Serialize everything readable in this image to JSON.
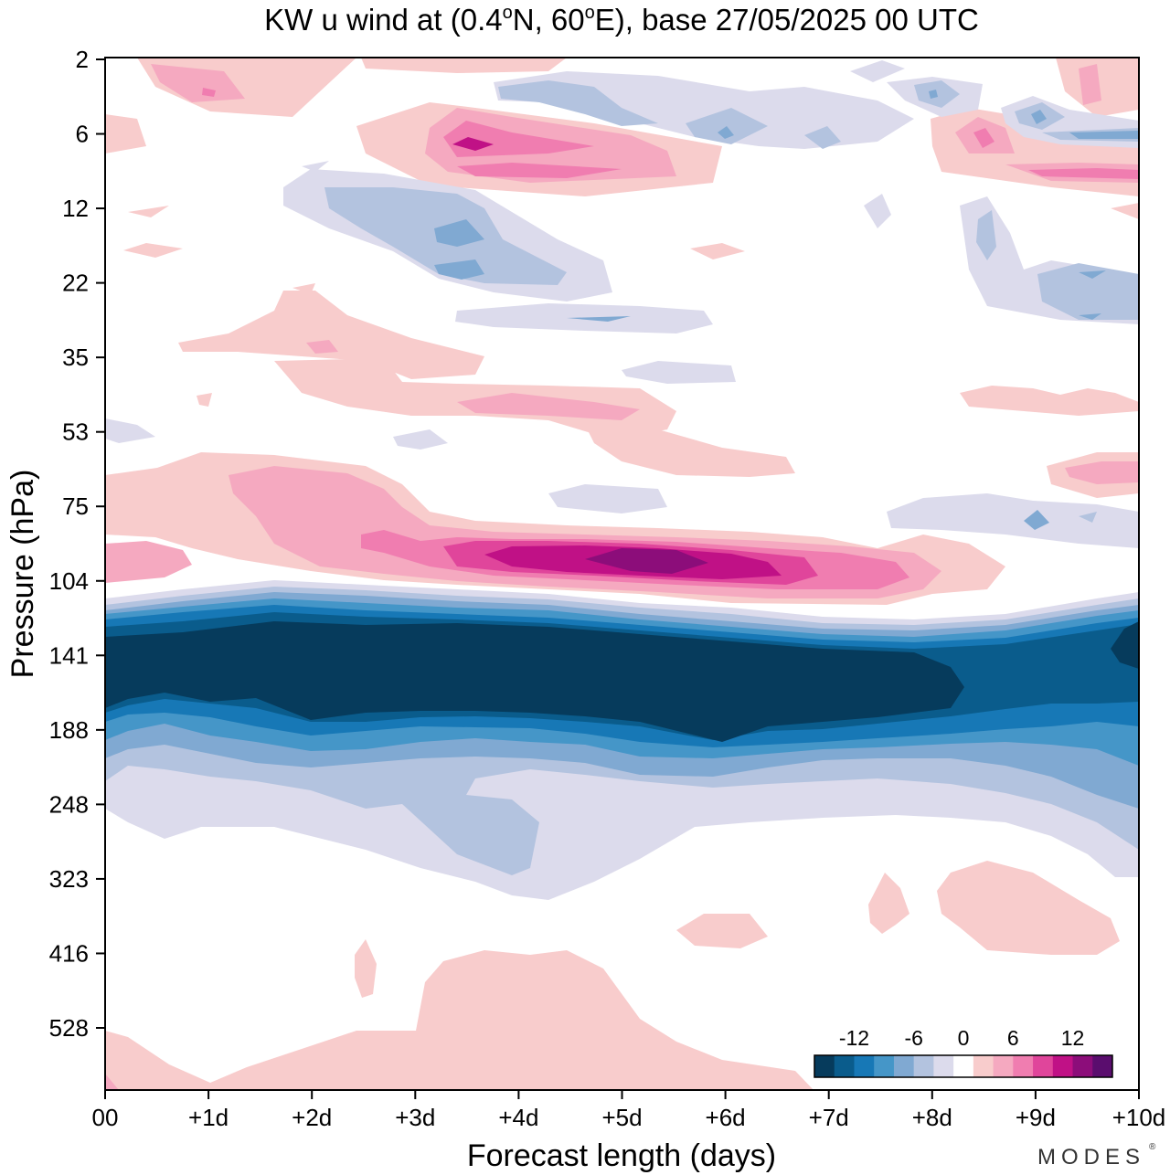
{
  "title": {
    "prefix": "KW u wind at (0.4",
    "deg1": "o",
    "mid": "N, 60",
    "deg2": "o",
    "suffix": "E),  base 27/05/2025  00 UTC"
  },
  "brand": "MODES",
  "brand_mark": "®",
  "chart_data": {
    "type": "heatmap",
    "variable": "KW u wind",
    "xlabel": "Forecast length (days)",
    "ylabel": "Pressure (hPa)",
    "x_ticks": [
      "00",
      "+1d",
      "+2d",
      "+3d",
      "+4d",
      "+5d",
      "+6d",
      "+7d",
      "+8d",
      "+9d",
      "+10d"
    ],
    "xlim": [
      0,
      10
    ],
    "y_ticks": [
      "2",
      "6",
      "12",
      "22",
      "35",
      "53",
      "75",
      "104",
      "141",
      "188",
      "248",
      "323",
      "416",
      "528"
    ],
    "y_levels": [
      2,
      6,
      12,
      22,
      35,
      53,
      75,
      104,
      141,
      188,
      248,
      323,
      416,
      528
    ],
    "y_reversed": true,
    "colorbar": {
      "tick_labels": [
        "-12",
        "-6",
        "0",
        "6",
        "12"
      ],
      "tick_values": [
        -12,
        -6,
        0,
        6,
        12
      ],
      "bounds": [
        -16,
        -14,
        -12,
        -10,
        -8,
        -6,
        -4,
        -2,
        2,
        4,
        6,
        8,
        10,
        12,
        14,
        16
      ],
      "colors": [
        "#063b5c",
        "#0a5c8c",
        "#1778b6",
        "#4596c8",
        "#80a9d2",
        "#b3c3df",
        "#dcdbec",
        "#ffffff",
        "#f8cccc",
        "#f5a9c0",
        "#f07db0",
        "#e0459b",
        "#c01186",
        "#8c0d7a",
        "#5a0d6e"
      ]
    },
    "features": [
      {
        "feature": "easterly jet core",
        "level": "below -16",
        "x_range": [
          0,
          8.3
        ],
        "p_range": [
          120,
          165
        ]
      },
      {
        "feature": "westerly maximum",
        "level": "12 to 14",
        "x_range": [
          4.7,
          5.8
        ],
        "p_range": [
          86,
          92
        ]
      },
      {
        "feature": "upper westerly band",
        "level": "8 to 10",
        "x_range": [
          3.4,
          4.4
        ],
        "p_range": [
          6,
          8
        ]
      }
    ]
  }
}
